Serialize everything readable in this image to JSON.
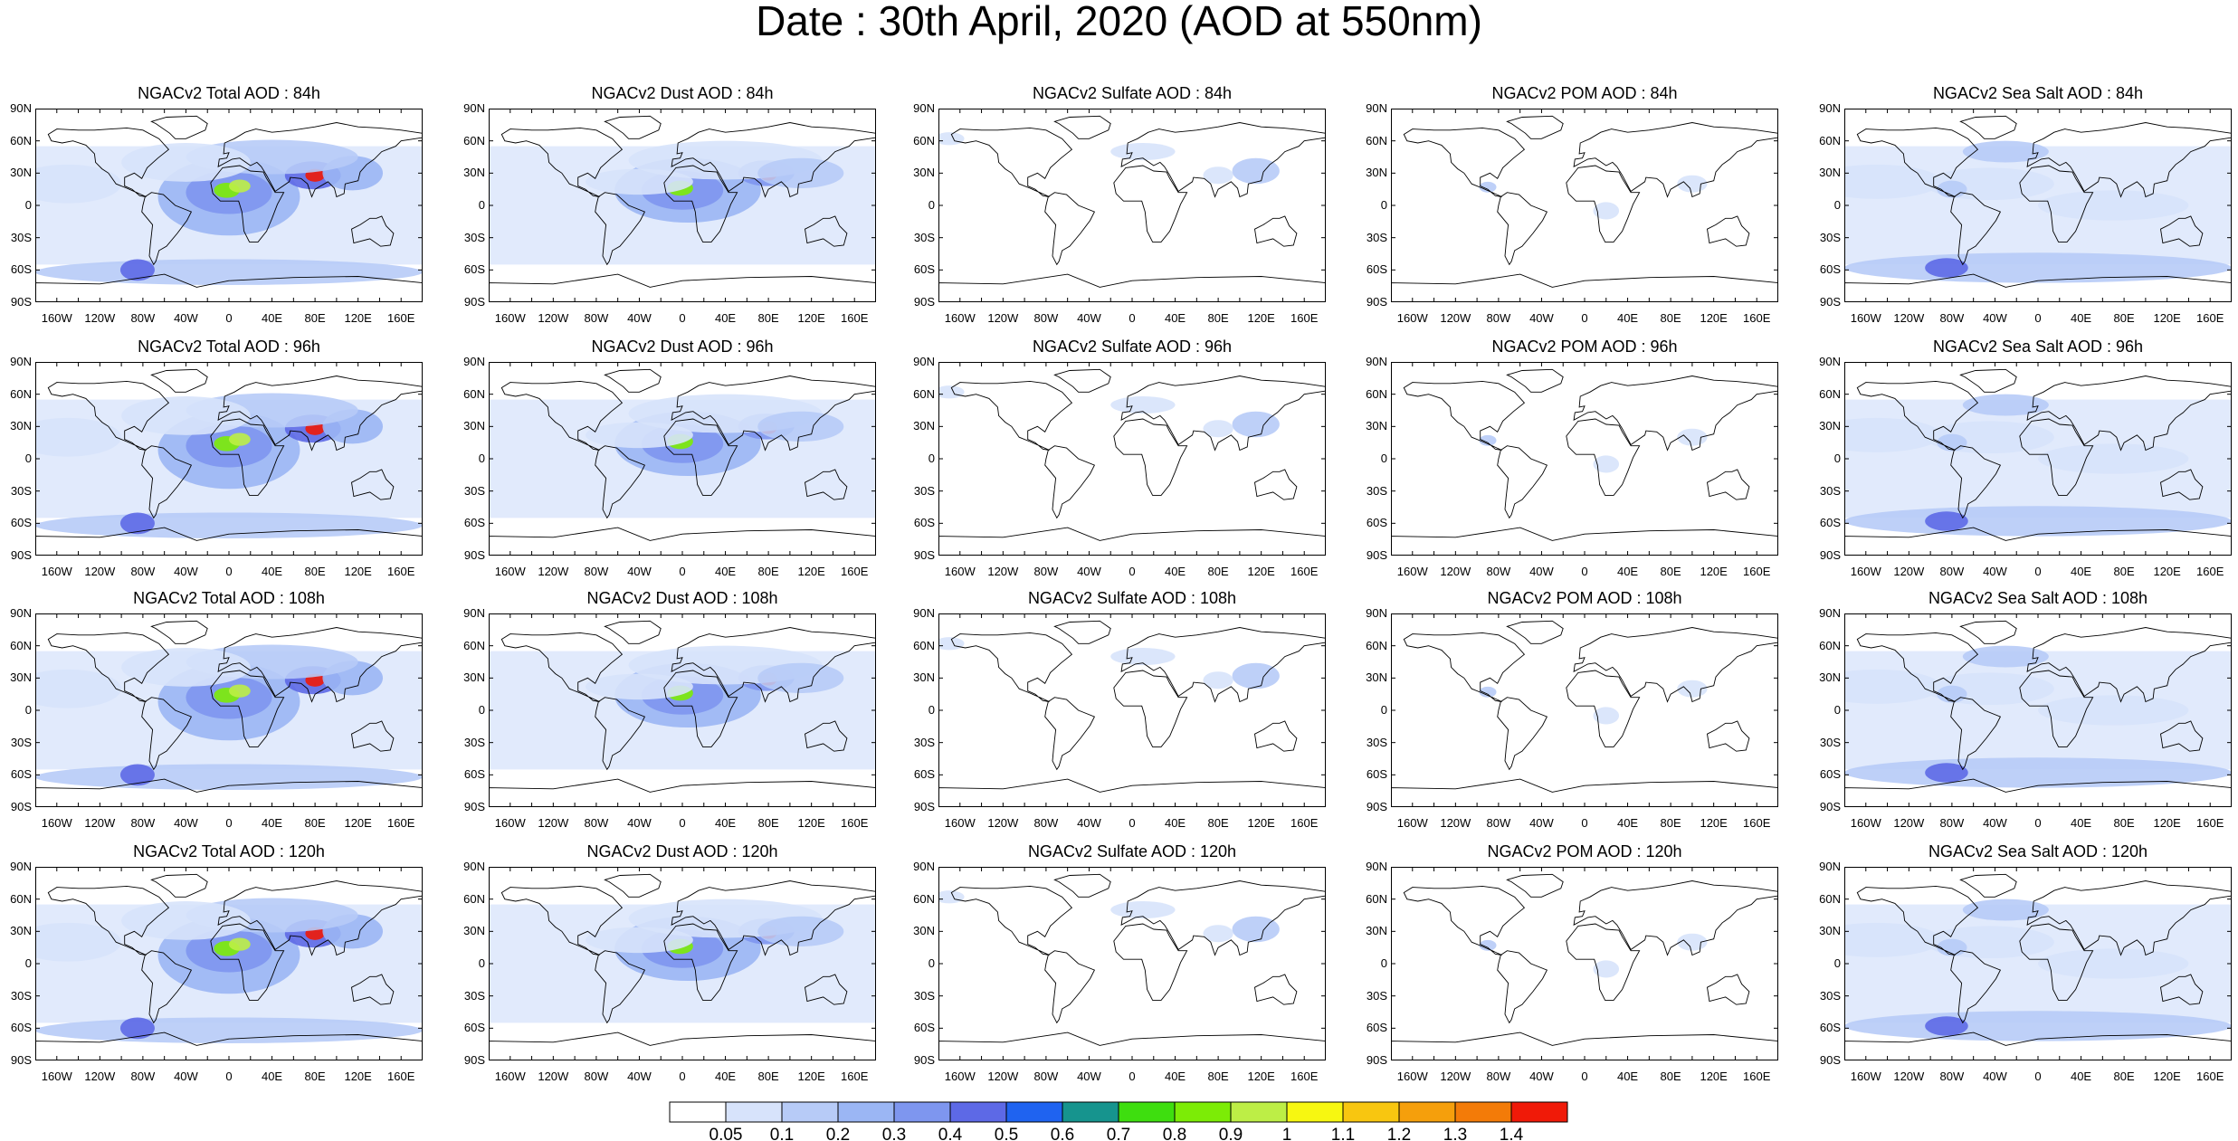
{
  "title": "Date : 30th April, 2020 (AOD at 550nm)",
  "species": [
    "Total",
    "Dust",
    "Sulfate",
    "POM",
    "Sea Salt"
  ],
  "forecast_hours": [
    "84h",
    "96h",
    "108h",
    "120h"
  ],
  "panels": [
    [
      {
        "title": "NGACv2 Total AOD : 84h",
        "species": "Total"
      },
      {
        "title": "NGACv2 Dust AOD : 84h",
        "species": "Dust"
      },
      {
        "title": "NGACv2 Sulfate AOD : 84h",
        "species": "Sulfate"
      },
      {
        "title": "NGACv2 POM AOD : 84h",
        "species": "POM"
      },
      {
        "title": "NGACv2 Sea Salt AOD : 84h",
        "species": "Sea Salt"
      }
    ],
    [
      {
        "title": "NGACv2 Total AOD : 96h",
        "species": "Total"
      },
      {
        "title": "NGACv2 Dust AOD : 96h",
        "species": "Dust"
      },
      {
        "title": "NGACv2 Sulfate AOD : 96h",
        "species": "Sulfate"
      },
      {
        "title": "NGACv2 POM AOD : 96h",
        "species": "POM"
      },
      {
        "title": "NGACv2 Sea Salt AOD : 96h",
        "species": "Sea Salt"
      }
    ],
    [
      {
        "title": "NGACv2 Total AOD : 108h",
        "species": "Total"
      },
      {
        "title": "NGACv2 Dust AOD : 108h",
        "species": "Dust"
      },
      {
        "title": "NGACv2 Sulfate AOD : 108h",
        "species": "Sulfate"
      },
      {
        "title": "NGACv2 POM AOD : 108h",
        "species": "POM"
      },
      {
        "title": "NGACv2 Sea Salt AOD : 108h",
        "species": "Sea Salt"
      }
    ],
    [
      {
        "title": "NGACv2 Total AOD : 120h",
        "species": "Total"
      },
      {
        "title": "NGACv2 Dust AOD : 120h",
        "species": "Dust"
      },
      {
        "title": "NGACv2 Sulfate AOD : 120h",
        "species": "Sulfate"
      },
      {
        "title": "NGACv2 POM AOD : 120h",
        "species": "POM"
      },
      {
        "title": "NGACv2 Sea Salt  AOD : 120h",
        "species": "Sea Salt"
      }
    ]
  ],
  "lat_ticks": [
    "90N",
    "60N",
    "30N",
    "0",
    "30S",
    "60S",
    "90S"
  ],
  "lon_ticks": [
    "160W",
    "120W",
    "80W",
    "40W",
    "0",
    "40E",
    "80E",
    "120E",
    "160E"
  ],
  "colorbar": {
    "colors": [
      "#ffffff",
      "#d7e3fb",
      "#b7cbf7",
      "#9bb6f4",
      "#7e96ef",
      "#5d69e6",
      "#1f63f0",
      "#16948e",
      "#3ede0f",
      "#7cec06",
      "#bdee46",
      "#f7f711",
      "#f8c610",
      "#f59f0c",
      "#f37b08",
      "#f01a08"
    ],
    "labels": [
      "0.05",
      "0.1",
      "0.2",
      "0.3",
      "0.4",
      "0.5",
      "0.6",
      "0.7",
      "0.8",
      "0.9",
      "1",
      "1.1",
      "1.2",
      "1.3",
      "1.4"
    ]
  }
}
